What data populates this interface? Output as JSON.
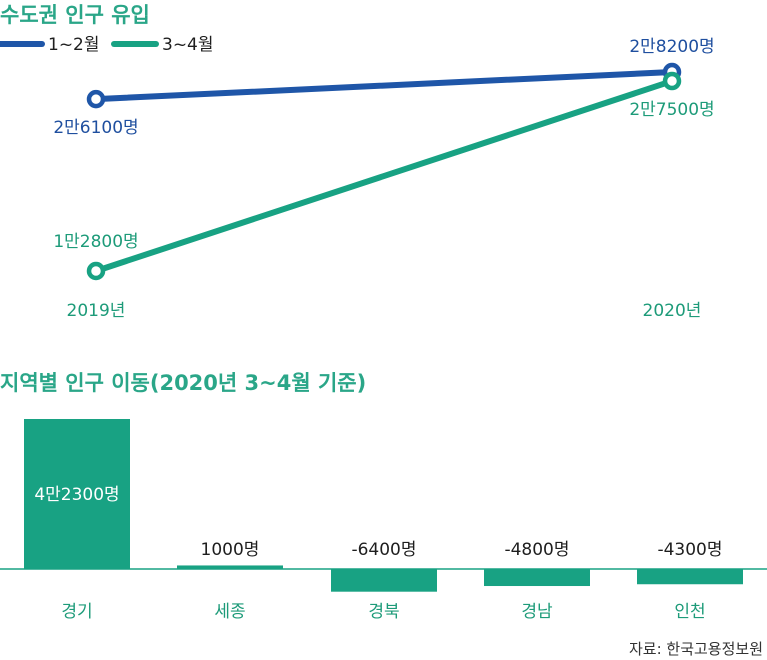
{
  "colors": {
    "blue": "#1f56a8",
    "green": "#18a283",
    "title": "#2aa688"
  },
  "chart_data": [
    {
      "type": "line",
      "title": "수도권 인구 유입",
      "x": [
        "2019년",
        "2020년"
      ],
      "series": [
        {
          "name": "1~2월",
          "values": [
            26100,
            28200
          ],
          "labels": [
            "2만6100명",
            "2만8200명"
          ]
        },
        {
          "name": "3~4월",
          "values": [
            12800,
            27500
          ],
          "labels": [
            "1만2800명",
            "2만7500명"
          ]
        }
      ]
    },
    {
      "type": "bar",
      "title": "지역별 인구 이동(2020년 3~4월 기준)",
      "categories": [
        "경기",
        "세종",
        "경북",
        "경남",
        "인천"
      ],
      "values": [
        42300,
        1000,
        -6400,
        -4800,
        -4300
      ],
      "labels": [
        "4만2300명",
        "1000명",
        "-6400명",
        "-4800명",
        "-4300명"
      ]
    }
  ],
  "source": "자료: 한국고용정보원"
}
